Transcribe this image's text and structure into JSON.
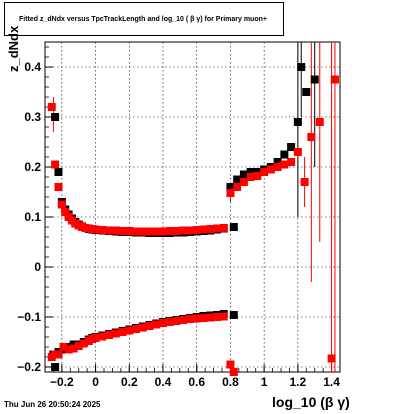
{
  "chart_data": {
    "type": "scatter",
    "title": "Fitted  z_dNdx  versus TpcTrackLength and log_10 ( β γ) for Primary muon+",
    "xlabel": "log_10 (β γ)",
    "ylabel": "z_dNdx",
    "footer": "Thu Jun 26 20:50:24 2025",
    "xlim": [
      -0.3,
      1.45
    ],
    "ylim": [
      -0.21,
      0.45
    ],
    "grid": true,
    "x_ticks": [
      "−0.2",
      "0",
      "0.2",
      "0.4",
      "0.6",
      "0.8",
      "1",
      "1.2",
      "1.4"
    ],
    "x_tick_values": [
      -0.2,
      0,
      0.2,
      0.4,
      0.6,
      0.8,
      1.0,
      1.2,
      1.4
    ],
    "y_ticks": [
      "−0.2",
      "−0.1",
      "0",
      "0.1",
      "0.2",
      "0.3",
      "0.4"
    ],
    "y_tick_values": [
      -0.2,
      -0.1,
      0,
      0.1,
      0.2,
      0.3,
      0.4
    ],
    "series": [
      {
        "color": "#000000",
        "marker": "square",
        "points_upper": [
          [
            -0.24,
            0.3
          ],
          [
            -0.22,
            0.19
          ],
          [
            -0.2,
            0.13
          ],
          [
            -0.18,
            0.115
          ],
          [
            -0.16,
            0.105
          ],
          [
            -0.14,
            0.097
          ],
          [
            -0.12,
            0.09
          ],
          [
            -0.1,
            0.085
          ],
          [
            -0.08,
            0.081
          ],
          [
            -0.06,
            0.078
          ],
          [
            -0.04,
            0.076
          ],
          [
            -0.02,
            0.075
          ],
          [
            0.0,
            0.074
          ],
          [
            0.04,
            0.073
          ],
          [
            0.08,
            0.072
          ],
          [
            0.12,
            0.071
          ],
          [
            0.16,
            0.07
          ],
          [
            0.2,
            0.07
          ],
          [
            0.24,
            0.069
          ],
          [
            0.28,
            0.069
          ],
          [
            0.32,
            0.068
          ],
          [
            0.36,
            0.068
          ],
          [
            0.4,
            0.068
          ],
          [
            0.44,
            0.068
          ],
          [
            0.48,
            0.069
          ],
          [
            0.52,
            0.069
          ],
          [
            0.56,
            0.07
          ],
          [
            0.6,
            0.071
          ],
          [
            0.64,
            0.072
          ],
          [
            0.68,
            0.073
          ],
          [
            0.72,
            0.075
          ],
          [
            0.76,
            0.077
          ],
          [
            0.82,
            0.08
          ],
          [
            0.8,
            0.16
          ],
          [
            0.84,
            0.175
          ],
          [
            0.88,
            0.185
          ],
          [
            0.92,
            0.19
          ],
          [
            0.96,
            0.19
          ],
          [
            1.0,
            0.195
          ],
          [
            1.04,
            0.2
          ],
          [
            1.08,
            0.21
          ],
          [
            1.12,
            0.225
          ],
          [
            1.16,
            0.24
          ],
          [
            1.2,
            0.29
          ],
          [
            1.22,
            0.4
          ],
          [
            1.25,
            0.35
          ],
          [
            1.3,
            0.375
          ]
        ],
        "points_lower": [
          [
            -0.25,
            -0.175
          ],
          [
            -0.22,
            -0.17
          ],
          [
            -0.19,
            -0.165
          ],
          [
            -0.16,
            -0.16
          ],
          [
            -0.13,
            -0.155
          ],
          [
            -0.1,
            -0.155
          ],
          [
            -0.07,
            -0.15
          ],
          [
            -0.04,
            -0.145
          ],
          [
            -0.02,
            -0.142
          ],
          [
            0.0,
            -0.14
          ],
          [
            0.04,
            -0.137
          ],
          [
            0.08,
            -0.134
          ],
          [
            0.12,
            -0.131
          ],
          [
            0.16,
            -0.128
          ],
          [
            0.2,
            -0.125
          ],
          [
            0.24,
            -0.122
          ],
          [
            0.28,
            -0.119
          ],
          [
            0.32,
            -0.116
          ],
          [
            0.36,
            -0.113
          ],
          [
            0.4,
            -0.11
          ],
          [
            0.44,
            -0.108
          ],
          [
            0.48,
            -0.106
          ],
          [
            0.52,
            -0.104
          ],
          [
            0.56,
            -0.102
          ],
          [
            0.6,
            -0.1
          ],
          [
            0.64,
            -0.098
          ],
          [
            0.68,
            -0.097
          ],
          [
            0.72,
            -0.096
          ],
          [
            0.76,
            -0.094
          ],
          [
            0.82,
            -0.096
          ],
          [
            0.82,
            -0.215
          ],
          [
            -0.24,
            -0.2
          ]
        ]
      },
      {
        "color": "#ff0000",
        "marker": "square",
        "points_upper": [
          [
            -0.26,
            0.32
          ],
          [
            -0.24,
            0.205
          ],
          [
            -0.22,
            0.16
          ],
          [
            -0.2,
            0.125
          ],
          [
            -0.18,
            0.11
          ],
          [
            -0.16,
            0.1
          ],
          [
            -0.14,
            0.093
          ],
          [
            -0.12,
            0.087
          ],
          [
            -0.1,
            0.083
          ],
          [
            -0.08,
            0.08
          ],
          [
            -0.06,
            0.078
          ],
          [
            -0.04,
            0.077
          ],
          [
            -0.02,
            0.076
          ],
          [
            0.0,
            0.075
          ],
          [
            0.04,
            0.074
          ],
          [
            0.08,
            0.073
          ],
          [
            0.12,
            0.073
          ],
          [
            0.16,
            0.072
          ],
          [
            0.2,
            0.072
          ],
          [
            0.24,
            0.071
          ],
          [
            0.28,
            0.071
          ],
          [
            0.32,
            0.071
          ],
          [
            0.36,
            0.071
          ],
          [
            0.4,
            0.071
          ],
          [
            0.44,
            0.072
          ],
          [
            0.48,
            0.072
          ],
          [
            0.52,
            0.073
          ],
          [
            0.56,
            0.073
          ],
          [
            0.6,
            0.074
          ],
          [
            0.64,
            0.075
          ],
          [
            0.68,
            0.076
          ],
          [
            0.72,
            0.077
          ],
          [
            0.76,
            0.078
          ],
          [
            0.8,
            0.148
          ],
          [
            0.84,
            0.16
          ],
          [
            0.88,
            0.17
          ],
          [
            0.92,
            0.18
          ],
          [
            0.96,
            0.182
          ],
          [
            1.0,
            0.19
          ],
          [
            1.04,
            0.195
          ],
          [
            1.08,
            0.2
          ],
          [
            1.12,
            0.205
          ],
          [
            1.16,
            0.21
          ],
          [
            1.2,
            0.23
          ],
          [
            1.24,
            0.17
          ],
          [
            1.28,
            0.26
          ],
          [
            1.33,
            0.29
          ],
          [
            1.42,
            0.375
          ]
        ],
        "points_lower": [
          [
            -0.26,
            -0.18
          ],
          [
            -0.24,
            -0.175
          ],
          [
            -0.22,
            -0.175
          ],
          [
            -0.19,
            -0.16
          ],
          [
            -0.16,
            -0.165
          ],
          [
            -0.13,
            -0.163
          ],
          [
            -0.1,
            -0.158
          ],
          [
            -0.07,
            -0.153
          ],
          [
            -0.04,
            -0.148
          ],
          [
            -0.02,
            -0.144
          ],
          [
            0.0,
            -0.142
          ],
          [
            0.04,
            -0.139
          ],
          [
            0.08,
            -0.136
          ],
          [
            0.12,
            -0.133
          ],
          [
            0.16,
            -0.13
          ],
          [
            0.2,
            -0.127
          ],
          [
            0.24,
            -0.124
          ],
          [
            0.28,
            -0.121
          ],
          [
            0.32,
            -0.118
          ],
          [
            0.36,
            -0.115
          ],
          [
            0.4,
            -0.112
          ],
          [
            0.44,
            -0.11
          ],
          [
            0.48,
            -0.108
          ],
          [
            0.52,
            -0.106
          ],
          [
            0.56,
            -0.104
          ],
          [
            0.6,
            -0.103
          ],
          [
            0.64,
            -0.102
          ],
          [
            0.68,
            -0.101
          ],
          [
            0.72,
            -0.1
          ],
          [
            0.76,
            -0.099
          ],
          [
            0.8,
            -0.195
          ],
          [
            0.82,
            -0.21
          ],
          [
            1.4,
            -0.183
          ]
        ]
      }
    ],
    "error_bars": [
      {
        "x": 1.2,
        "y_low": 0.1,
        "y_high": 0.45,
        "color": "#000000"
      },
      {
        "x": 1.22,
        "y_low": 0.3,
        "y_high": 0.45,
        "color": "#000000"
      },
      {
        "x": 1.3,
        "y_low": 0.2,
        "y_high": 0.45,
        "color": "#000000"
      },
      {
        "x": 1.24,
        "y_low": 0.12,
        "y_high": 0.22,
        "color": "#ff0000"
      },
      {
        "x": 1.28,
        "y_low": -0.03,
        "y_high": 0.45,
        "color": "#ff0000"
      },
      {
        "x": 1.33,
        "y_low": 0.05,
        "y_high": 0.45,
        "color": "#ff0000"
      },
      {
        "x": 1.4,
        "y_low": -0.21,
        "y_high": 0.45,
        "color": "#ff0000"
      },
      {
        "x": 1.42,
        "y_low": -0.21,
        "y_high": 0.45,
        "color": "#ff0000"
      },
      {
        "x": 0.8,
        "y_low": 0.13,
        "y_high": 0.16,
        "color": "#ff0000"
      },
      {
        "x": -0.25,
        "y_low": 0.27,
        "y_high": 0.34,
        "color": "#ff0000"
      }
    ]
  }
}
